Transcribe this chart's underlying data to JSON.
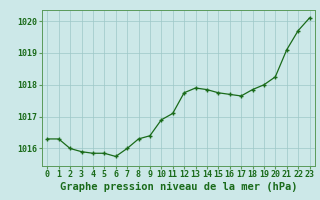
{
  "x": [
    0,
    1,
    2,
    3,
    4,
    5,
    6,
    7,
    8,
    9,
    10,
    11,
    12,
    13,
    14,
    15,
    16,
    17,
    18,
    19,
    20,
    21,
    22,
    23
  ],
  "y": [
    1016.3,
    1016.3,
    1016.0,
    1015.9,
    1015.85,
    1015.85,
    1015.75,
    1016.0,
    1016.3,
    1016.4,
    1016.9,
    1017.1,
    1017.75,
    1017.9,
    1017.85,
    1017.75,
    1017.7,
    1017.65,
    1017.85,
    1018.0,
    1018.25,
    1019.1,
    1019.7,
    1020.1
  ],
  "line_color": "#1a6b1a",
  "marker_color": "#1a6b1a",
  "bg_color": "#cce8e8",
  "grid_color": "#9ec8c8",
  "axis_color": "#1a6b1a",
  "spine_color": "#5a9a5a",
  "xlabel": "Graphe pression niveau de la mer (hPa)",
  "xlabel_fontsize": 7.5,
  "tick_fontsize": 6.0,
  "ytick_labels": [
    1016,
    1017,
    1018,
    1019,
    1020
  ],
  "ylim": [
    1015.45,
    1020.35
  ],
  "xlim": [
    -0.5,
    23.5
  ]
}
